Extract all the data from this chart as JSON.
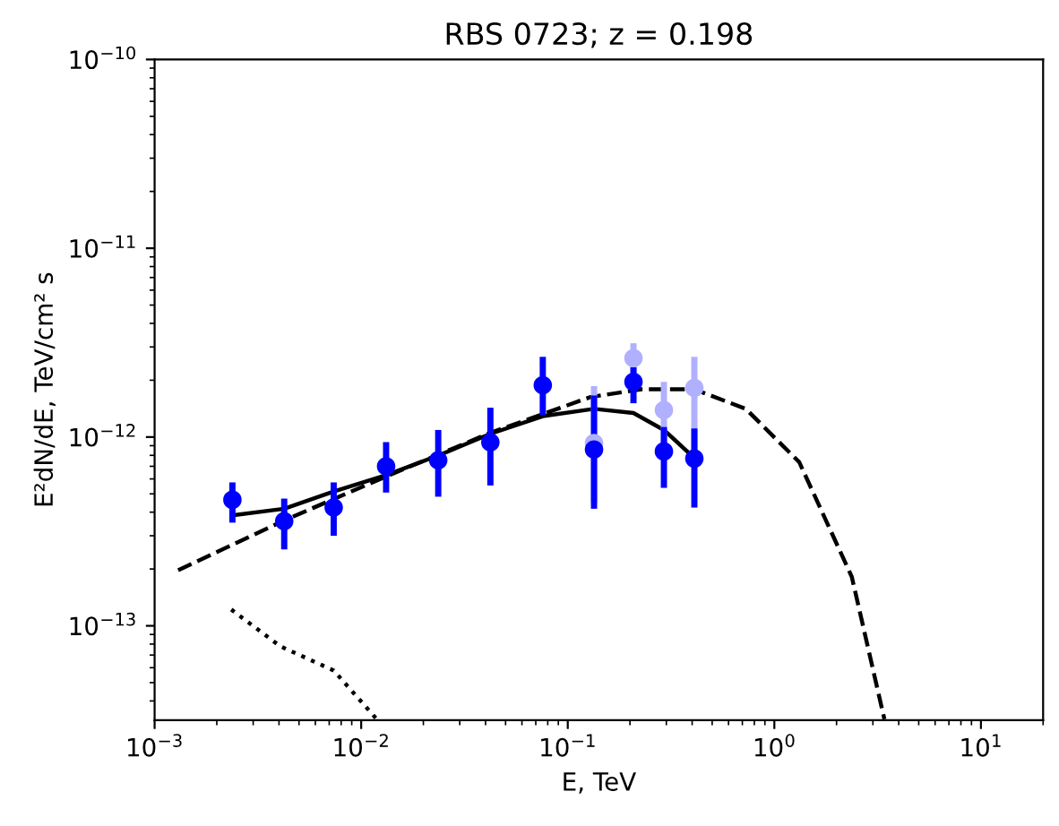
{
  "chart_data": {
    "type": "scatter",
    "title": "RBS 0723; z = 0.198",
    "xlabel": "E, TeV",
    "ylabel": "E²dN/dE, TeV/cm² s",
    "log": "xy",
    "grid": false,
    "legend": false,
    "xlim": [
      0.001,
      20
    ],
    "ylim": [
      3.16e-14,
      1e-10
    ],
    "xticks": [
      {
        "value": 0.001,
        "label": "10$^{−3}$"
      },
      {
        "value": 0.01,
        "label": "10$^{−2}$"
      },
      {
        "value": 0.1,
        "label": "10$^{−1}$"
      },
      {
        "value": 1,
        "label": "10$^{0}$"
      },
      {
        "value": 10,
        "label": "10$^{1}$"
      }
    ],
    "yticks": [
      {
        "value": 1e-13,
        "label": "10$^{−13}$"
      },
      {
        "value": 1e-12,
        "label": "10$^{−12}$"
      },
      {
        "value": 1e-11,
        "label": "10$^{−11}$"
      },
      {
        "value": 1e-10,
        "label": "10$^{−10}$"
      }
    ],
    "series": [
      {
        "type": "line",
        "line_style": "dashed",
        "marker": "none",
        "color": "#000000",
        "x": [
          0.0013,
          0.0042,
          0.0132,
          0.042,
          0.129,
          0.227,
          0.41,
          0.728,
          1.32,
          2.37,
          3.41
        ],
        "values": [
          1.97e-13,
          3.6e-13,
          6.18e-13,
          1.05e-12,
          1.63e-12,
          1.79e-12,
          1.79e-12,
          1.41e-12,
          7.36e-13,
          1.82e-13,
          3.2e-14
        ]
      },
      {
        "type": "line",
        "line_style": "solid",
        "marker": "none",
        "color": "#000000",
        "x": [
          0.00238,
          0.00424,
          0.00736,
          0.0132,
          0.0236,
          0.0422,
          0.0757,
          0.134,
          0.208,
          0.292,
          0.41
        ],
        "values": [
          3.85e-13,
          4.17e-13,
          5.15e-13,
          6.28e-13,
          7.98e-13,
          1.04e-12,
          1.29e-12,
          1.41e-12,
          1.34e-12,
          1.09e-12,
          7.74e-13
        ]
      },
      {
        "type": "line",
        "line_style": "dotted",
        "marker": "none",
        "color": "#000000",
        "x": [
          0.00235,
          0.00405,
          0.00736,
          0.0119
        ],
        "values": [
          1.22e-13,
          7.8e-14,
          5.8e-14,
          3.2e-14
        ]
      },
      {
        "marker": "circle",
        "color": "#b0b0ff",
        "x": [
          0.134,
          0.208,
          0.292,
          0.41
        ],
        "values": [
          9.3e-13,
          2.62e-12,
          1.39e-12,
          1.82e-12
        ],
        "errors": [
          [
            4.5e-13,
            1.86e-12
          ],
          [
            2.1e-12,
            3.14e-12
          ],
          [
            8.8e-13,
            1.96e-12
          ],
          [
            8.1e-13,
            2.66e-12
          ]
        ]
      },
      {
        "marker": "circle",
        "color": "#0000ff",
        "x": [
          0.00238,
          0.00424,
          0.00736,
          0.0132,
          0.0236,
          0.0422,
          0.0757,
          0.134,
          0.208,
          0.292,
          0.41
        ],
        "values": [
          4.65e-13,
          3.58e-13,
          4.23e-13,
          7e-13,
          7.53e-13,
          9.37e-13,
          1.88e-12,
          8.59e-13,
          1.96e-12,
          8.39e-13,
          7.69e-13
        ],
        "errors": [
          [
            3.52e-13,
            5.75e-13
          ],
          [
            2.54e-13,
            4.72e-13
          ],
          [
            3e-13,
            5.75e-13
          ],
          [
            5.08e-13,
            9.4e-13
          ],
          [
            4.83e-13,
            1.09e-12
          ],
          [
            5.54e-13,
            1.43e-12
          ],
          [
            1.31e-12,
            2.66e-12
          ],
          [
            4.17e-13,
            1.66e-12
          ],
          [
            1.51e-12,
            2.34e-12
          ],
          [
            5.38e-13,
            1.13e-12
          ],
          [
            4.23e-13,
            1.11e-12
          ]
        ]
      }
    ]
  }
}
